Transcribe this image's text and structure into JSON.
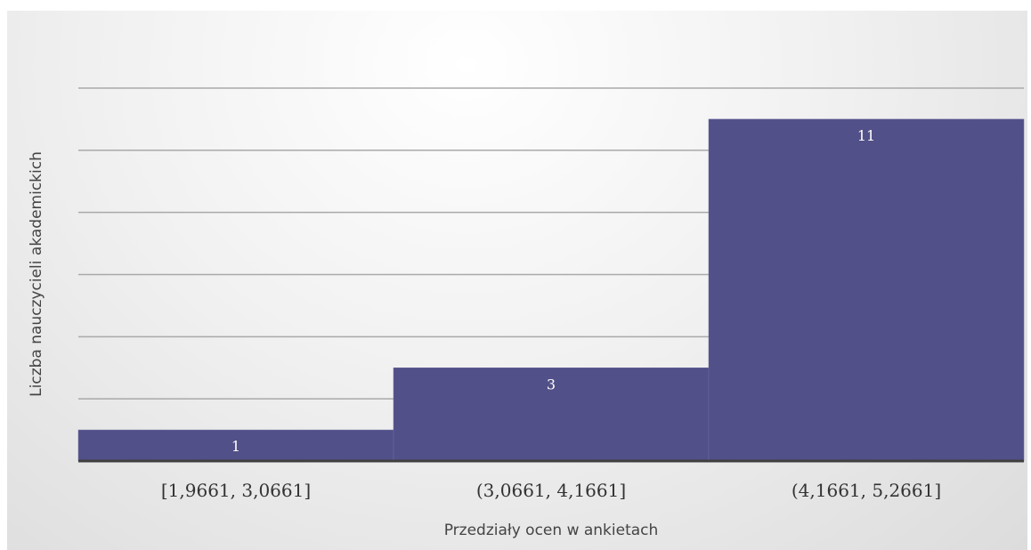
{
  "chart_data": {
    "type": "bar",
    "title": "",
    "xlabel": "Przedziały ocen w ankietach",
    "ylabel": "Liczba nauczycieli akademickich",
    "categories": [
      "[1,9661, 3,0661]",
      "(3,0661, 4,1661]",
      "(4,1661, 5,2661]"
    ],
    "values": [
      1,
      3,
      11
    ],
    "data_labels": [
      "1",
      "3",
      "11"
    ],
    "ylim": [
      0,
      12
    ],
    "ytick_step": 2,
    "grid": true,
    "legend": "none",
    "bar_gap": 0
  },
  "colors": {
    "bar": "#525088",
    "axis": "#404040",
    "grid": "#a9a9a9",
    "label": "#ffffff"
  }
}
